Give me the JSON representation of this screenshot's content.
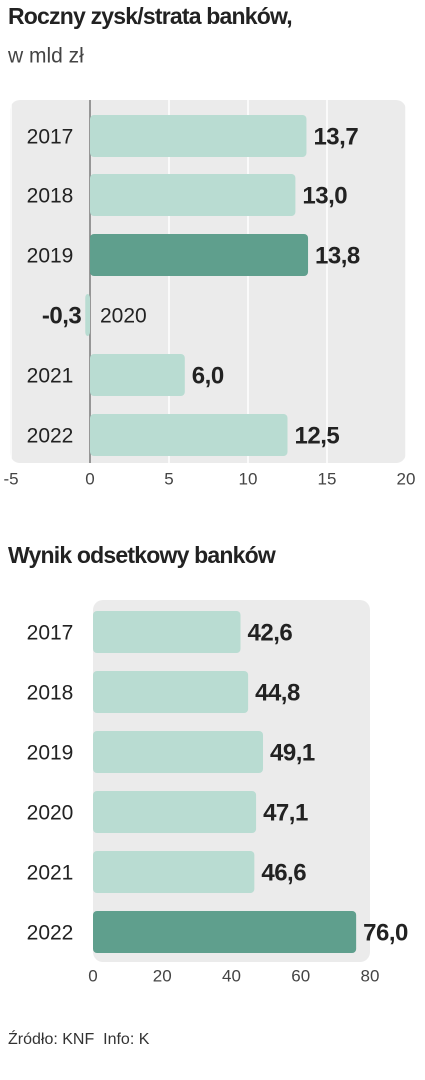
{
  "chart_data": [
    {
      "type": "bar",
      "orientation": "horizontal",
      "title": "Roczny zysk/strata banków,",
      "subtitle": "w mld zł",
      "categories": [
        "2017",
        "2018",
        "2019",
        "2020",
        "2021",
        "2022"
      ],
      "values": [
        13.7,
        13.0,
        13.8,
        -0.3,
        6.0,
        12.5
      ],
      "value_labels": [
        "13,7",
        "13,0",
        "13,8",
        "-0,3",
        "6,0",
        "12,5"
      ],
      "colors": [
        "#b9dcd2",
        "#b9dcd2",
        "#5f9f8d",
        "#b9dcd2",
        "#b9dcd2",
        "#b9dcd2"
      ],
      "xlim": [
        -5,
        20
      ],
      "xticks": [
        -5,
        0,
        5,
        10,
        15,
        20
      ],
      "grid": true
    },
    {
      "type": "bar",
      "orientation": "horizontal",
      "title": "Wynik odsetkowy banków",
      "categories": [
        "2017",
        "2018",
        "2019",
        "2020",
        "2021",
        "2022"
      ],
      "values": [
        42.6,
        44.8,
        49.1,
        47.1,
        46.6,
        76.0
      ],
      "value_labels": [
        "42,6",
        "44,8",
        "49,1",
        "47,1",
        "46,6",
        "76,0"
      ],
      "colors": [
        "#b9dcd2",
        "#b9dcd2",
        "#b9dcd2",
        "#b9dcd2",
        "#b9dcd2",
        "#5f9f8d"
      ],
      "xlim": [
        0,
        80
      ],
      "xticks": [
        0,
        20,
        40,
        60,
        80
      ],
      "grid": false
    }
  ],
  "source": "Źródło: KNF  Info: K"
}
